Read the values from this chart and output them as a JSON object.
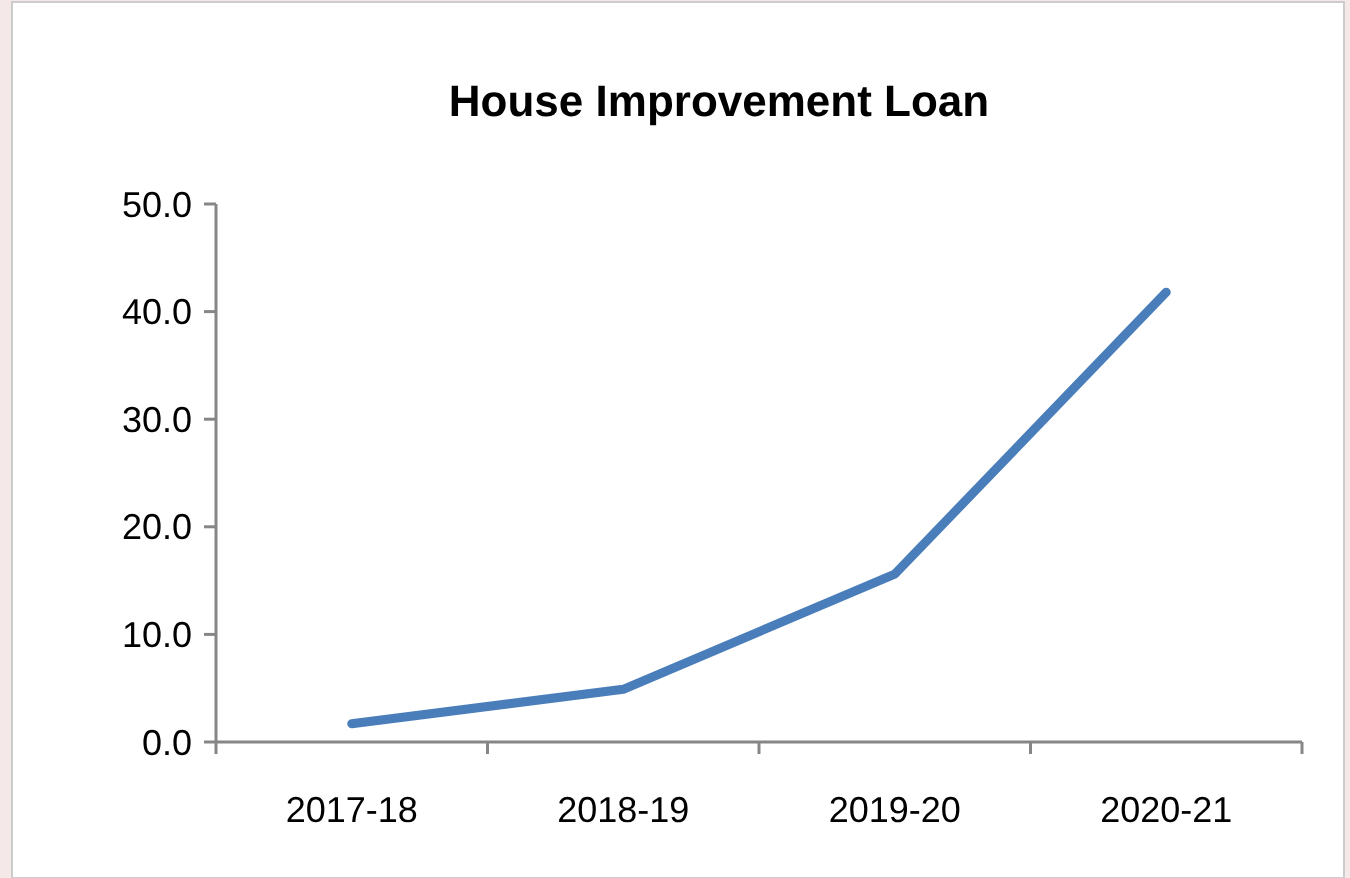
{
  "chart_data": {
    "type": "line",
    "title": "House Improvement Loan",
    "categories": [
      "2017-18",
      "2018-19",
      "2019-20",
      "2020-21"
    ],
    "series": [
      {
        "color": "#4a7ebb",
        "values": [
          1.7,
          4.9,
          15.6,
          41.8
        ]
      }
    ],
    "ylim": [
      0,
      50
    ],
    "yticks": [
      {
        "value": 0,
        "label": "0.0"
      },
      {
        "value": 10,
        "label": "10.0"
      },
      {
        "value": 20,
        "label": "20.0"
      },
      {
        "value": 30,
        "label": "30.0"
      },
      {
        "value": 40,
        "label": "40.0"
      },
      {
        "value": 50,
        "label": "50.0"
      }
    ],
    "line_style": "solid"
  }
}
